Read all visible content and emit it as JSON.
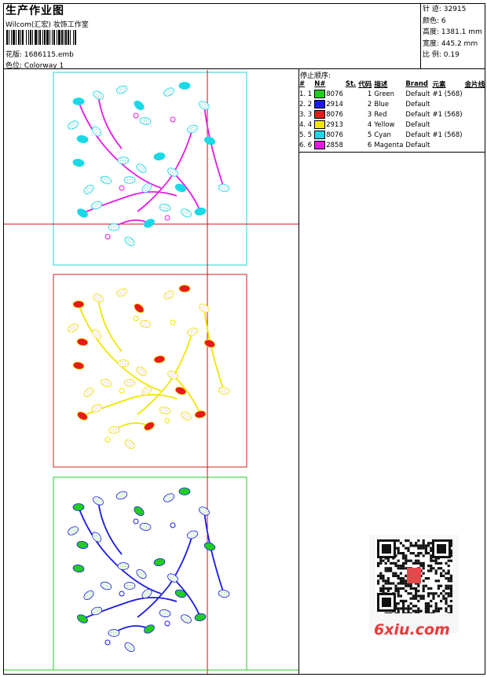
{
  "header": {
    "title": "生产作业图",
    "studio": "Wilcom(汇宏) 妆饰工作室",
    "design_file_label": "花版:",
    "design_file": "1686115.emb",
    "colorway_label": "色位:",
    "colorway": "Colorway 1"
  },
  "stats": [
    {
      "label": "针 迹:",
      "value": "32915"
    },
    {
      "label": "颜色:",
      "value": "6"
    },
    {
      "label": "高度:",
      "value": "1381.1 mm"
    },
    {
      "label": "宽度:",
      "value": "445.2 mm"
    },
    {
      "label": "比 例:",
      "value": "0.19"
    }
  ],
  "stop_sequence": {
    "title": "停止顺序:",
    "headers": [
      "#",
      "N#",
      "St.",
      "代码",
      "描述",
      "Brand",
      "元素",
      "金片线"
    ],
    "rows": [
      {
        "idx": "1. 1",
        "code": "8076",
        "num": "1",
        "desc": "Green",
        "brand": "Default",
        "elem": "#1 (568)",
        "color": "#22cc22"
      },
      {
        "idx": "2. 2",
        "code": "2914",
        "num": "2",
        "desc": "Blue",
        "brand": "Default",
        "elem": "",
        "color": "#1a1ae6"
      },
      {
        "idx": "3. 3",
        "code": "8076",
        "num": "3",
        "desc": "Red",
        "brand": "Default",
        "elem": "#1 (568)",
        "color": "#e61a1a"
      },
      {
        "idx": "4. 4",
        "code": "2913",
        "num": "4",
        "desc": "Yellow",
        "brand": "Default",
        "elem": "",
        "color": "#f0e600"
      },
      {
        "idx": "5. 5",
        "code": "8076",
        "num": "5",
        "desc": "Cyan",
        "brand": "Default",
        "elem": "#1 (568)",
        "color": "#1ad9e6"
      },
      {
        "idx": "6. 6",
        "code": "2858",
        "num": "6",
        "desc": "Magenta",
        "brand": "Default",
        "elem": "",
        "color": "#e61ae6"
      }
    ]
  },
  "watermark": {
    "text": "6xiu.com"
  },
  "colors": {
    "cyan_frame": "#2ad6d6",
    "red_frame": "#d02020",
    "green_frame": "#22cc22",
    "crosshair": "#d01010"
  }
}
